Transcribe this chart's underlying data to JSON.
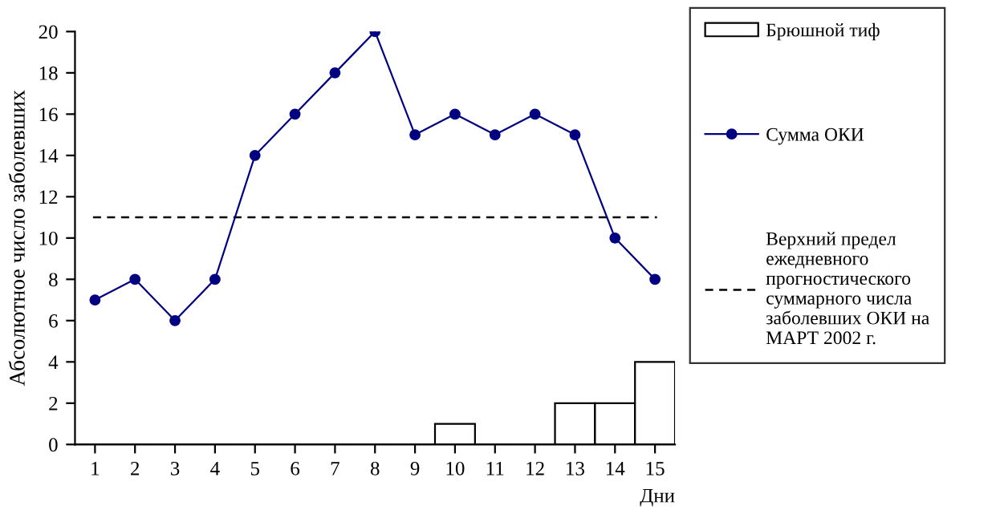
{
  "chart_data": {
    "type": "bar",
    "xlabel": "Дни",
    "ylabel": "Абсолютное число заболевших",
    "categories": [
      "1",
      "2",
      "3",
      "4",
      "5",
      "6",
      "7",
      "8",
      "9",
      "10",
      "11",
      "12",
      "13",
      "14",
      "15"
    ],
    "series": [
      {
        "name": "Брюшной тиф",
        "color": "#ffffff",
        "values": [
          0,
          0,
          0,
          0,
          0,
          0,
          0,
          0,
          0,
          1,
          0,
          0,
          2,
          2,
          4
        ]
      },
      {
        "name": "Сумма ОКИ",
        "type": "line",
        "color": "#000080",
        "marker": "circle",
        "values": [
          7,
          8,
          6,
          8,
          14,
          16,
          18,
          20,
          15,
          16,
          15,
          16,
          15,
          10,
          8
        ]
      }
    ],
    "ref_lines": [
      {
        "axis": "y",
        "value": 11,
        "label": "Верхний предел\nежедневного\nпрогностического\nсуммарного числа\nзаболевших ОКИ на\nМАРТ 2002 г.",
        "color": "#000000",
        "line_style": "dashed"
      }
    ],
    "ylim": [
      0,
      20
    ],
    "yticks": [
      0,
      2,
      4,
      6,
      8,
      10,
      12,
      14,
      16,
      18,
      20
    ],
    "grid": false,
    "legend": "right"
  }
}
